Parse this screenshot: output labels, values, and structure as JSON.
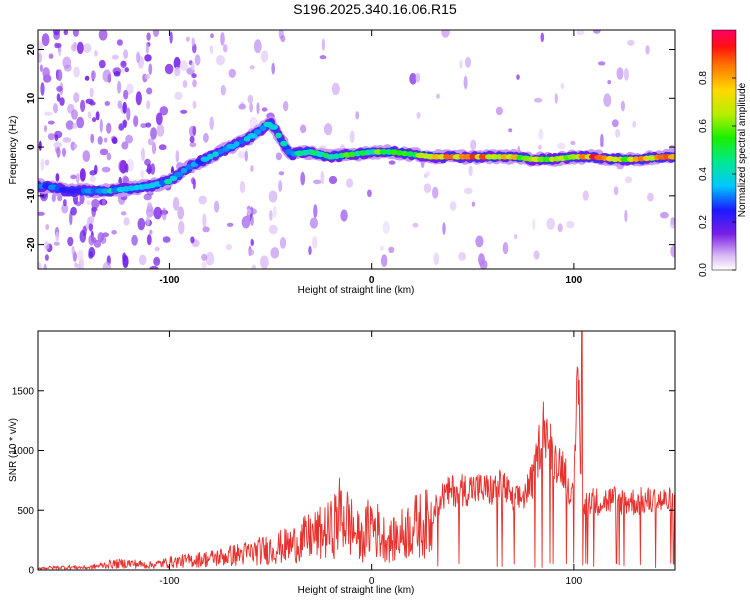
{
  "title": "S196.2025.340.16.06.R15",
  "colors": {
    "snr_line": "#e8302c",
    "background": "#ffffff",
    "axis": "#000000"
  },
  "chart_data": [
    {
      "type": "heatmap",
      "name": "spectrogram",
      "title": "S196.2025.340.16.06.R15",
      "xlabel": "Height of straight line (km)",
      "ylabel": "Frequency (Hz)",
      "xlim": [
        -165,
        150
      ],
      "ylim": [
        -25,
        24
      ],
      "xticks": [
        -100,
        0,
        100
      ],
      "xtick_labels": [
        "-100",
        "0",
        "100"
      ],
      "yticks": [
        -20,
        -10,
        0,
        10,
        20
      ],
      "ytick_labels": [
        "-20",
        "-10",
        "0",
        "10",
        "20"
      ],
      "colorbar": {
        "label": "Normalized spectral amplitude",
        "range": [
          0,
          1
        ],
        "ticks": [
          0.0,
          0.2,
          0.4,
          0.6,
          0.8
        ],
        "tick_labels": [
          "0.0",
          "0.2",
          "0.4",
          "0.6",
          "0.8"
        ]
      },
      "ridge": {
        "x": [
          -160,
          -150,
          -140,
          -130,
          -120,
          -110,
          -100,
          -90,
          -80,
          -70,
          -60,
          -50,
          -40,
          -30,
          -20,
          -10,
          0,
          10,
          20,
          30,
          40,
          50,
          60,
          70,
          80,
          90,
          100,
          110,
          120,
          130,
          145
        ],
        "y": [
          -8,
          -9,
          -9,
          -9,
          -8.5,
          -8,
          -7,
          -4,
          -2,
          0,
          2,
          5,
          -1.5,
          -1,
          -2,
          -1.5,
          -1,
          -1,
          -1.5,
          -2,
          -2,
          -2,
          -2,
          -2,
          -2.5,
          -2.5,
          -2,
          -2,
          -2.5,
          -2.5,
          -2
        ],
        "amplitude": [
          0.3,
          0.25,
          0.3,
          0.4,
          0.35,
          0.35,
          0.4,
          0.3,
          0.35,
          0.35,
          0.35,
          0.4,
          0.4,
          0.45,
          0.5,
          0.55,
          0.55,
          0.6,
          0.6,
          0.85,
          0.9,
          0.85,
          0.8,
          0.75,
          0.65,
          0.6,
          0.7,
          0.9,
          0.7,
          0.75,
          0.85
        ]
      }
    },
    {
      "type": "line",
      "name": "snr",
      "xlabel": "Height of straight line (km)",
      "ylabel": "SNR (10 * v/v)",
      "xlim": [
        -165,
        150
      ],
      "ylim": [
        0,
        2000
      ],
      "xticks": [
        -100,
        0,
        100
      ],
      "xtick_labels": [
        "-100",
        "0",
        "100"
      ],
      "yticks": [
        0,
        500,
        1000,
        1500
      ],
      "ytick_labels": [
        "0",
        "500",
        "1000",
        "1500"
      ],
      "series": [
        {
          "name": "SNR",
          "x": [
            -165,
            -150,
            -140,
            -130,
            -120,
            -110,
            -100,
            -90,
            -80,
            -70,
            -60,
            -50,
            -40,
            -30,
            -25,
            -20,
            -15,
            -10,
            -5,
            0,
            5,
            10,
            20,
            30,
            35,
            40,
            50,
            60,
            65,
            70,
            75,
            80,
            85,
            90,
            95,
            100,
            102,
            104,
            106,
            110,
            120,
            130,
            140,
            150
          ],
          "y": [
            20,
            30,
            25,
            60,
            70,
            50,
            80,
            100,
            120,
            150,
            180,
            220,
            260,
            350,
            380,
            420,
            600,
            450,
            300,
            500,
            350,
            300,
            450,
            500,
            650,
            700,
            720,
            700,
            750,
            600,
            650,
            800,
            1300,
            1000,
            900,
            600,
            1900,
            400,
            650,
            600,
            620,
            600,
            610,
            600
          ]
        }
      ]
    }
  ]
}
